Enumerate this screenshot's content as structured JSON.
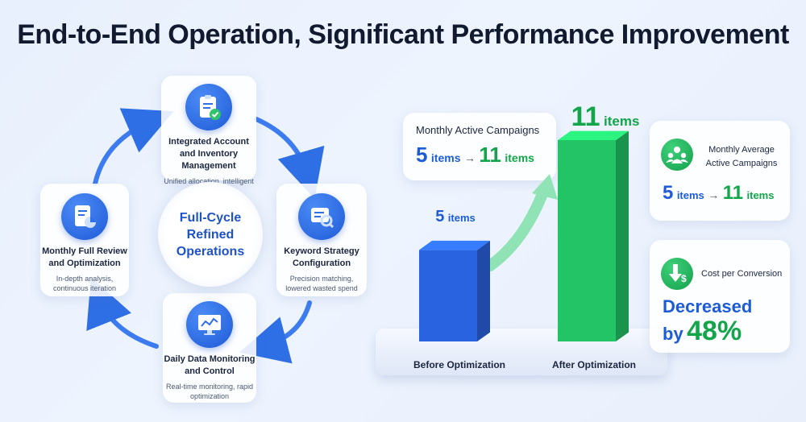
{
  "title": "End-to-End Operation, Significant Performance Improvement",
  "cycle": {
    "center": "Full-Cycle Refined Operations",
    "steps": [
      {
        "title": "Integrated Account and Inventory Management",
        "desc": "Unified allocation, intelligent stocking",
        "icon": "clipboard-check-icon"
      },
      {
        "title": "Keyword Strategy Configuration",
        "desc": "Precision matching, lowered wasted spend",
        "icon": "keyword-search-icon"
      },
      {
        "title": "Daily Data Monitoring and Control",
        "desc": "Real-time monitoring, rapid optimization",
        "icon": "monitor-chart-icon"
      },
      {
        "title": "Monthly Full Review and Optimization",
        "desc": "In-depth analysis, continuous iteration",
        "icon": "report-pie-icon"
      }
    ]
  },
  "campaigns_box": {
    "label": "Monthly Active Campaigns",
    "before_num": "5",
    "before_unit": "items",
    "arrow": "→",
    "after_num": "11",
    "after_unit": "items"
  },
  "chart_data": {
    "type": "bar",
    "categories": [
      "Before Optimization",
      "After Optimization"
    ],
    "values": [
      5,
      11
    ],
    "data_labels": [
      {
        "num": "5",
        "unit": "items"
      },
      {
        "num": "11",
        "unit": "items"
      }
    ],
    "colors": [
      "#2a63e0",
      "#22c466"
    ]
  },
  "right_cards": {
    "avg": {
      "label": "Monthly Average Active Campaigns",
      "before_num": "5",
      "before_unit": "items",
      "arrow": "→",
      "after_num": "11",
      "after_unit": "items",
      "icon": "people-group-icon"
    },
    "cost": {
      "label": "Cost per Conversion",
      "decreased": "Decreased",
      "by": "by",
      "percent": "48%",
      "icon": "dollar-down-icon"
    }
  },
  "colors": {
    "blue": "#1e5bd6",
    "green": "#12a54a"
  }
}
